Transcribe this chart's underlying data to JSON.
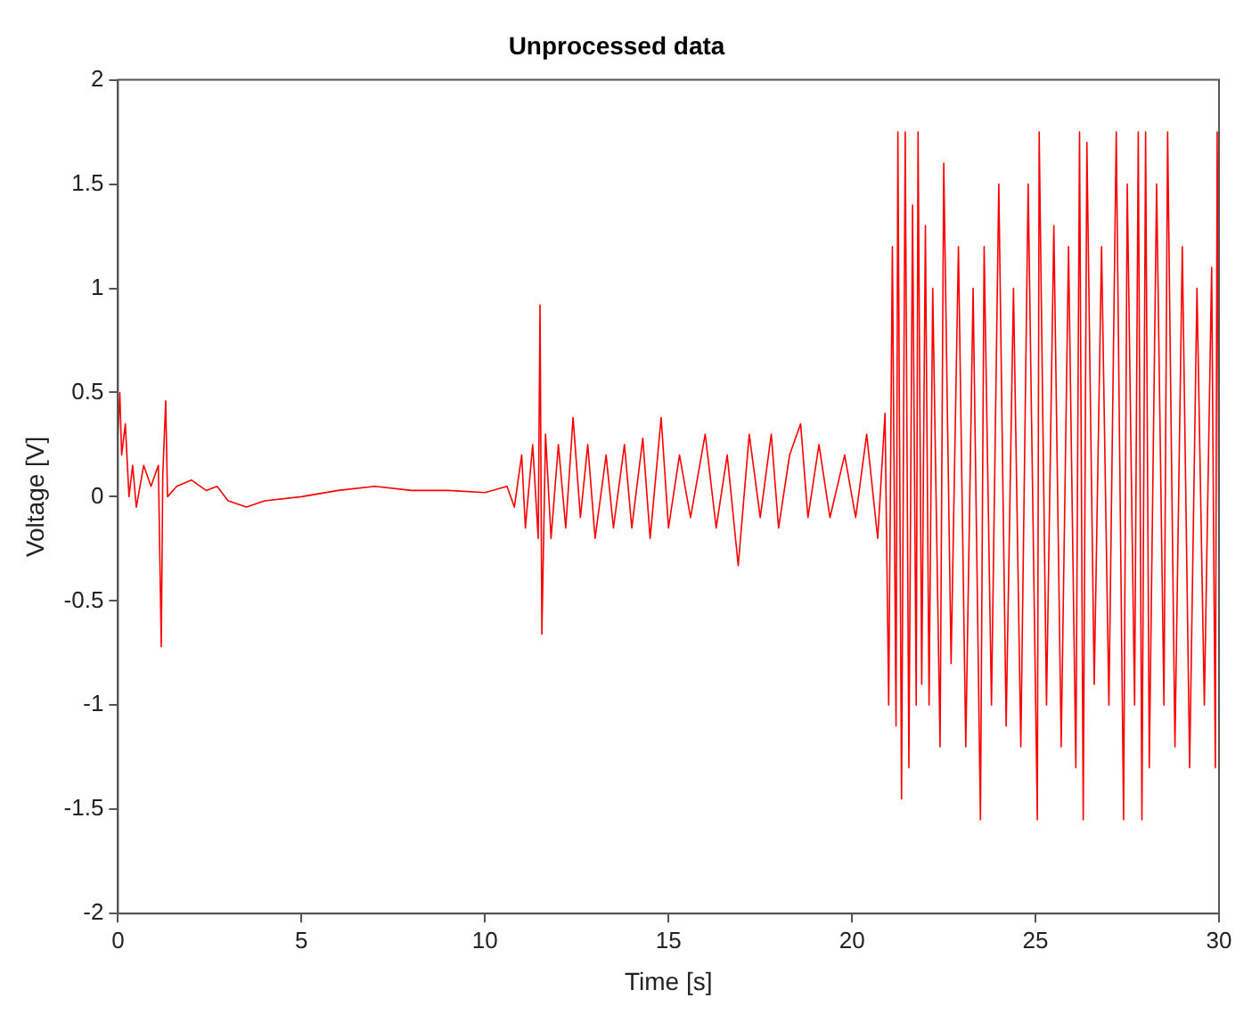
{
  "chart_data": {
    "type": "line",
    "title": "Unprocessed data",
    "xlabel": "Time [s]",
    "ylabel": "Voltage [V]",
    "xlim": [
      0,
      30
    ],
    "xticks": [
      0,
      5,
      10,
      15,
      20,
      25,
      30
    ],
    "ylim": [
      -2,
      2
    ],
    "yticks": [
      -2,
      -1.5,
      -1,
      -0.5,
      0,
      0.5,
      1,
      1.5,
      2
    ],
    "grid": false,
    "legend": false,
    "marker": "none",
    "line_style": "solid",
    "series": [
      {
        "color": "#ff0000",
        "x": [
          0,
          0.05,
          0.1,
          0.2,
          0.3,
          0.4,
          0.5,
          0.7,
          0.9,
          1.1,
          1.18,
          1.22,
          1.3,
          1.35,
          1.6,
          2,
          2.4,
          2.7,
          3,
          3.5,
          4,
          5,
          6,
          7,
          8,
          9,
          10,
          10.6,
          10.8,
          11,
          11.1,
          11.3,
          11.45,
          11.5,
          11.55,
          11.65,
          11.8,
          12,
          12.2,
          12.4,
          12.6,
          12.8,
          13,
          13.3,
          13.5,
          13.8,
          14,
          14.3,
          14.5,
          14.8,
          15,
          15.3,
          15.6,
          16,
          16.3,
          16.6,
          16.9,
          17.2,
          17.5,
          17.8,
          18,
          18.3,
          18.6,
          18.8,
          19.1,
          19.4,
          19.8,
          20.1,
          20.4,
          20.7,
          20.9,
          21,
          21.1,
          21.2,
          21.25,
          21.35,
          21.45,
          21.55,
          21.65,
          21.75,
          21.8,
          21.9,
          22,
          22.1,
          22.2,
          22.4,
          22.5,
          22.7,
          22.9,
          23.1,
          23.3,
          23.5,
          23.6,
          23.8,
          24,
          24.2,
          24.4,
          24.6,
          24.8,
          25.05,
          25.1,
          25.3,
          25.5,
          25.7,
          25.9,
          26.1,
          26.2,
          26.3,
          26.4,
          26.6,
          26.8,
          27,
          27.2,
          27.4,
          27.5,
          27.7,
          27.8,
          27.9,
          28,
          28.1,
          28.3,
          28.5,
          28.6,
          28.8,
          29,
          29.2,
          29.4,
          29.6,
          29.8,
          29.9,
          29.95,
          30
        ],
        "values": [
          0.3,
          0.5,
          0.2,
          0.35,
          0,
          0.15,
          -0.05,
          0.15,
          0.05,
          0.15,
          -0.72,
          0.1,
          0.46,
          0,
          0.05,
          0.08,
          0.03,
          0.05,
          -0.02,
          -0.05,
          -0.02,
          0,
          0.03,
          0.05,
          0.03,
          0.03,
          0.02,
          0.05,
          -0.05,
          0.2,
          -0.15,
          0.25,
          -0.2,
          0.92,
          -0.66,
          0.3,
          -0.2,
          0.25,
          -0.15,
          0.38,
          -0.1,
          0.25,
          -0.2,
          0.2,
          -0.15,
          0.25,
          -0.15,
          0.28,
          -0.2,
          0.38,
          -0.15,
          0.2,
          -0.1,
          0.3,
          -0.15,
          0.2,
          -0.33,
          0.3,
          -0.1,
          0.3,
          -0.15,
          0.2,
          0.35,
          -0.1,
          0.25,
          -0.1,
          0.2,
          -0.1,
          0.3,
          -0.2,
          0.4,
          -1,
          1.2,
          -1.1,
          1.75,
          -1.45,
          1.75,
          -1.3,
          1.4,
          -1,
          1.75,
          -0.9,
          1.3,
          -1,
          1,
          -1.2,
          1.6,
          -0.8,
          1.2,
          -1.2,
          1,
          -1.55,
          1.2,
          -1,
          1.5,
          -1.1,
          1,
          -1.2,
          1.5,
          -1.55,
          1.75,
          -1,
          1.3,
          -1.2,
          1.2,
          -1.3,
          1.75,
          -1.55,
          1.7,
          -0.9,
          1.2,
          -1,
          1.75,
          -1.55,
          1.5,
          -1,
          1.75,
          -1.55,
          1.75,
          -1.3,
          1.5,
          -1,
          1.75,
          -1.2,
          1.2,
          -1.3,
          1,
          -1,
          1.1,
          -1.3,
          1.75,
          -0.3
        ]
      }
    ]
  }
}
